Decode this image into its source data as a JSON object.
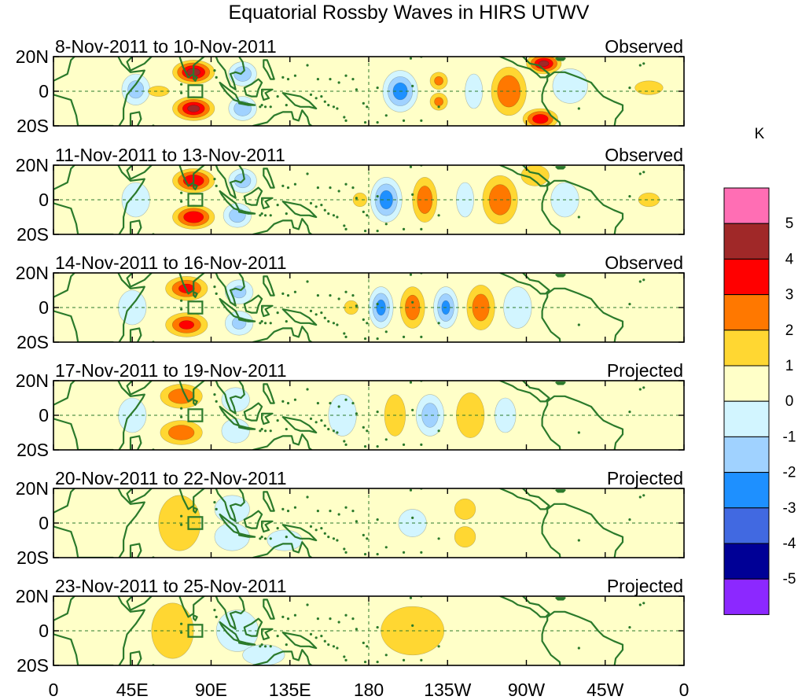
{
  "chart_data": {
    "type": "heatmap",
    "title": "Equatorial Rossby Waves in HIRS UTWV",
    "units": "K",
    "x_ticks": [
      "0",
      "45E",
      "90E",
      "135E",
      "180",
      "135W",
      "90W",
      "45W",
      "0"
    ],
    "y_ticks": [
      "20N",
      "0",
      "20S"
    ],
    "colorbar": {
      "levels": [
        "5",
        "4",
        "3",
        "2",
        "1",
        "0",
        "-1",
        "-2",
        "-3",
        "-4",
        "-5"
      ],
      "colors": [
        "#ff6eb4",
        "#a02828",
        "#ff0000",
        "#ff7800",
        "#ffd732",
        "#ffffc8",
        "#d2f5ff",
        "#a0d2ff",
        "#1e90ff",
        "#4169e1",
        "#000096",
        "#8c28ff"
      ]
    },
    "panels": [
      {
        "date_range": "8-Nov-2011 to 10-Nov-2011",
        "status": "Observed",
        "features": [
          {
            "lon": 47,
            "lat": 1,
            "value": -2.3,
            "lon_half_width": 8,
            "lat_half_width": 9
          },
          {
            "lon": 60,
            "lat": 0,
            "value": 1.6,
            "lon_half_width": 6,
            "lat_half_width": 3
          },
          {
            "lon": 80,
            "lat": 11,
            "value": 4.4,
            "lon_half_width": 12,
            "lat_half_width": 7
          },
          {
            "lon": 80,
            "lat": -10,
            "value": 4.2,
            "lon_half_width": 12,
            "lat_half_width": 7
          },
          {
            "lon": 108,
            "lat": 10,
            "value": -2.6,
            "lon_half_width": 8,
            "lat_half_width": 7
          },
          {
            "lon": 108,
            "lat": -10,
            "value": -2.6,
            "lon_half_width": 8,
            "lat_half_width": 7
          },
          {
            "lon": 198,
            "lat": 0,
            "value": -3.4,
            "lon_half_width": 10,
            "lat_half_width": 12
          },
          {
            "lon": 220,
            "lat": 6,
            "value": 2.0,
            "lon_half_width": 5,
            "lat_half_width": 5
          },
          {
            "lon": 220,
            "lat": -6,
            "value": 2.0,
            "lon_half_width": 5,
            "lat_half_width": 5
          },
          {
            "lon": 240,
            "lat": 0,
            "value": -1.4,
            "lon_half_width": 5,
            "lat_half_width": 10
          },
          {
            "lon": 260,
            "lat": 0,
            "value": 2.9,
            "lon_half_width": 10,
            "lat_half_width": 14
          },
          {
            "lon": 280,
            "lat": 16,
            "value": 4.2,
            "lon_half_width": 10,
            "lat_half_width": 6
          },
          {
            "lon": 278,
            "lat": -16,
            "value": 3.6,
            "lon_half_width": 10,
            "lat_half_width": 6
          },
          {
            "lon": 295,
            "lat": 3,
            "value": -1.6,
            "lon_half_width": 10,
            "lat_half_width": 10
          },
          {
            "lon": 340,
            "lat": 2,
            "value": 1.4,
            "lon_half_width": 8,
            "lat_half_width": 4
          }
        ]
      },
      {
        "date_range": "11-Nov-2011 to 13-Nov-2011",
        "status": "Observed",
        "features": [
          {
            "lon": 47,
            "lat": 0,
            "value": -1.6,
            "lon_half_width": 8,
            "lat_half_width": 10
          },
          {
            "lon": 80,
            "lat": 11,
            "value": 3.9,
            "lon_half_width": 12,
            "lat_half_width": 7
          },
          {
            "lon": 80,
            "lat": -10,
            "value": 3.8,
            "lon_half_width": 12,
            "lat_half_width": 7
          },
          {
            "lon": 108,
            "lat": 11,
            "value": -2.4,
            "lon_half_width": 8,
            "lat_half_width": 7
          },
          {
            "lon": 105,
            "lat": -9,
            "value": -2.4,
            "lon_half_width": 8,
            "lat_half_width": 7
          },
          {
            "lon": 175,
            "lat": 0,
            "value": 1.6,
            "lon_half_width": 4,
            "lat_half_width": 4
          },
          {
            "lon": 190,
            "lat": 0,
            "value": -3.4,
            "lon_half_width": 9,
            "lat_half_width": 13
          },
          {
            "lon": 212,
            "lat": 0,
            "value": 2.6,
            "lon_half_width": 7,
            "lat_half_width": 13
          },
          {
            "lon": 235,
            "lat": 0,
            "value": -1.6,
            "lon_half_width": 5,
            "lat_half_width": 10
          },
          {
            "lon": 255,
            "lat": 0,
            "value": 2.7,
            "lon_half_width": 10,
            "lat_half_width": 14
          },
          {
            "lon": 275,
            "lat": 14,
            "value": 1.5,
            "lon_half_width": 8,
            "lat_half_width": 6
          },
          {
            "lon": 292,
            "lat": 0,
            "value": -1.4,
            "lon_half_width": 8,
            "lat_half_width": 10
          },
          {
            "lon": 340,
            "lat": 0,
            "value": 1.2,
            "lon_half_width": 6,
            "lat_half_width": 4
          }
        ]
      },
      {
        "date_range": "14-Nov-2011 to 16-Nov-2011",
        "status": "Observed",
        "features": [
          {
            "lon": 45,
            "lat": 0,
            "value": -1.5,
            "lon_half_width": 8,
            "lat_half_width": 10
          },
          {
            "lon": 76,
            "lat": 11,
            "value": 3.2,
            "lon_half_width": 12,
            "lat_half_width": 7
          },
          {
            "lon": 76,
            "lat": -10,
            "value": 3.1,
            "lon_half_width": 12,
            "lat_half_width": 7
          },
          {
            "lon": 106,
            "lat": 9,
            "value": -2.0,
            "lon_half_width": 8,
            "lat_half_width": 7
          },
          {
            "lon": 106,
            "lat": -9,
            "value": -2.0,
            "lon_half_width": 8,
            "lat_half_width": 7
          },
          {
            "lon": 170,
            "lat": 0,
            "value": 1.2,
            "lon_half_width": 4,
            "lat_half_width": 4
          },
          {
            "lon": 187,
            "lat": 0,
            "value": -3.2,
            "lon_half_width": 7,
            "lat_half_width": 12
          },
          {
            "lon": 205,
            "lat": 0,
            "value": 2.5,
            "lon_half_width": 7,
            "lat_half_width": 12
          },
          {
            "lon": 224,
            "lat": 0,
            "value": -3.0,
            "lon_half_width": 7,
            "lat_half_width": 12
          },
          {
            "lon": 244,
            "lat": 0,
            "value": 2.5,
            "lon_half_width": 8,
            "lat_half_width": 13
          },
          {
            "lon": 265,
            "lat": 0,
            "value": -1.8,
            "lon_half_width": 8,
            "lat_half_width": 12
          }
        ]
      },
      {
        "date_range": "17-Nov-2011 to 19-Nov-2011",
        "status": "Projected",
        "features": [
          {
            "lon": 45,
            "lat": 0,
            "value": -1.2,
            "lon_half_width": 8,
            "lat_half_width": 10
          },
          {
            "lon": 73,
            "lat": 11,
            "value": 2.6,
            "lon_half_width": 12,
            "lat_half_width": 7
          },
          {
            "lon": 73,
            "lat": -10,
            "value": 2.6,
            "lon_half_width": 12,
            "lat_half_width": 7
          },
          {
            "lon": 104,
            "lat": 9,
            "value": -1.6,
            "lon_half_width": 8,
            "lat_half_width": 7
          },
          {
            "lon": 104,
            "lat": -9,
            "value": -1.6,
            "lon_half_width": 8,
            "lat_half_width": 7
          },
          {
            "lon": 165,
            "lat": 0,
            "value": -1.3,
            "lon_half_width": 8,
            "lat_half_width": 12
          },
          {
            "lon": 195,
            "lat": 0,
            "value": 1.6,
            "lon_half_width": 6,
            "lat_half_width": 12
          },
          {
            "lon": 215,
            "lat": 0,
            "value": -2.4,
            "lon_half_width": 8,
            "lat_half_width": 12
          },
          {
            "lon": 238,
            "lat": 0,
            "value": 1.8,
            "lon_half_width": 8,
            "lat_half_width": 13
          },
          {
            "lon": 258,
            "lat": 0,
            "value": -1.2,
            "lon_half_width": 6,
            "lat_half_width": 10
          }
        ]
      },
      {
        "date_range": "20-Nov-2011 to 22-Nov-2011",
        "status": "Projected",
        "features": [
          {
            "lon": 72,
            "lat": 0,
            "value": 1.6,
            "lon_half_width": 12,
            "lat_half_width": 16
          },
          {
            "lon": 102,
            "lat": 8,
            "value": -1.3,
            "lon_half_width": 10,
            "lat_half_width": 8
          },
          {
            "lon": 102,
            "lat": -8,
            "value": -1.4,
            "lon_half_width": 10,
            "lat_half_width": 8
          },
          {
            "lon": 132,
            "lat": -10,
            "value": -1.2,
            "lon_half_width": 10,
            "lat_half_width": 6
          },
          {
            "lon": 205,
            "lat": 0,
            "value": -1.3,
            "lon_half_width": 8,
            "lat_half_width": 8
          },
          {
            "lon": 235,
            "lat": 8,
            "value": 1.1,
            "lon_half_width": 6,
            "lat_half_width": 6
          },
          {
            "lon": 235,
            "lat": -8,
            "value": 1.1,
            "lon_half_width": 6,
            "lat_half_width": 6
          }
        ]
      },
      {
        "date_range": "23-Nov-2011 to 25-Nov-2011",
        "status": "Projected",
        "features": [
          {
            "lon": 68,
            "lat": 0,
            "value": 1.4,
            "lon_half_width": 12,
            "lat_half_width": 16
          },
          {
            "lon": 105,
            "lat": 0,
            "value": -1.3,
            "lon_half_width": 12,
            "lat_half_width": 12
          },
          {
            "lon": 120,
            "lat": -14,
            "value": -1.4,
            "lon_half_width": 12,
            "lat_half_width": 6
          },
          {
            "lon": 205,
            "lat": 0,
            "value": 0.8,
            "lon_half_width": 18,
            "lat_half_width": 14
          }
        ]
      }
    ]
  }
}
